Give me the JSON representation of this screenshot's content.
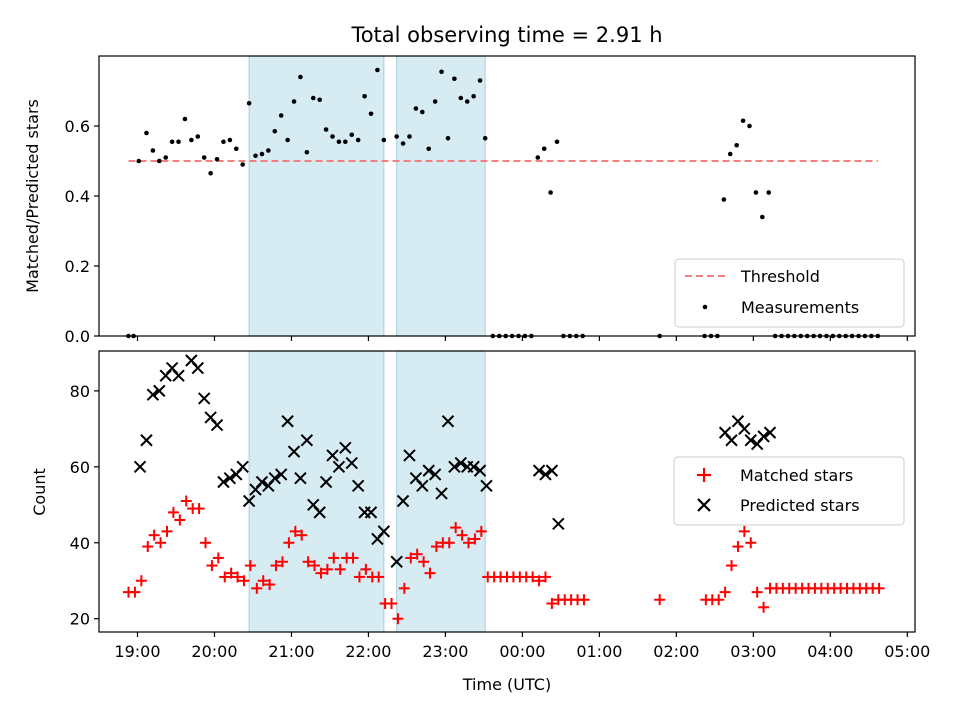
{
  "chart_data": {
    "title": "Total observing time = 2.91 h",
    "xlabel": "Time (UTC)",
    "x_domain": [
      "18:30",
      "05:06"
    ],
    "x_ticks": [
      "19:00",
      "20:00",
      "21:00",
      "22:00",
      "23:00",
      "00:00",
      "01:00",
      "02:00",
      "03:00",
      "04:00",
      "05:00"
    ],
    "shaded_intervals": [
      [
        "20:27",
        "22:12"
      ],
      [
        "22:22",
        "23:31"
      ]
    ],
    "top": {
      "type": "scatter",
      "ylabel": "Matched/Predicted stars",
      "ylim": [
        0,
        0.8
      ],
      "y_ticks": [
        "0.0",
        "0.2",
        "0.4",
        "0.6"
      ],
      "legend": "bottom-right",
      "threshold": {
        "name": "Threshold",
        "y": 0.5,
        "x": [
          "18:53",
          "04:37"
        ],
        "color": "#f47f7f"
      },
      "measurements": {
        "name": "Measurements",
        "color": "#000000",
        "points": [
          [
            "18:53",
            0
          ],
          [
            "18:57",
            0
          ],
          [
            "19:01",
            0.5
          ],
          [
            "19:07",
            0.58
          ],
          [
            "19:12",
            0.53
          ],
          [
            "19:17",
            0.5
          ],
          [
            "19:22",
            0.51
          ],
          [
            "19:27",
            0.555
          ],
          [
            "19:32",
            0.555
          ],
          [
            "19:37",
            0.62
          ],
          [
            "19:42",
            0.56
          ],
          [
            "19:47",
            0.57
          ],
          [
            "19:52",
            0.51
          ],
          [
            "19:57",
            0.465
          ],
          [
            "20:02",
            0.505
          ],
          [
            "20:07",
            0.555
          ],
          [
            "20:12",
            0.56
          ],
          [
            "20:17",
            0.535
          ],
          [
            "20:22",
            0.49
          ],
          [
            "20:27",
            0.665
          ],
          [
            "20:32",
            0.515
          ],
          [
            "20:37",
            0.52
          ],
          [
            "20:42",
            0.53
          ],
          [
            "20:47",
            0.585
          ],
          [
            "20:52",
            0.63
          ],
          [
            "20:57",
            0.56
          ],
          [
            "21:02",
            0.67
          ],
          [
            "21:07",
            0.74
          ],
          [
            "21:12",
            0.525
          ],
          [
            "21:17",
            0.68
          ],
          [
            "21:22",
            0.675
          ],
          [
            "21:27",
            0.59
          ],
          [
            "21:32",
            0.57
          ],
          [
            "21:37",
            0.555
          ],
          [
            "21:42",
            0.555
          ],
          [
            "21:47",
            0.575
          ],
          [
            "21:52",
            0.56
          ],
          [
            "21:57",
            0.685
          ],
          [
            "22:02",
            0.635
          ],
          [
            "22:07",
            0.76
          ],
          [
            "22:12",
            0.56
          ],
          [
            "22:22",
            0.57
          ],
          [
            "22:27",
            0.55
          ],
          [
            "22:32",
            0.57
          ],
          [
            "22:37",
            0.65
          ],
          [
            "22:42",
            0.64
          ],
          [
            "22:47",
            0.535
          ],
          [
            "22:52",
            0.67
          ],
          [
            "22:57",
            0.755
          ],
          [
            "23:02",
            0.565
          ],
          [
            "23:07",
            0.735
          ],
          [
            "23:12",
            0.68
          ],
          [
            "23:17",
            0.67
          ],
          [
            "23:22",
            0.685
          ],
          [
            "23:27",
            0.73
          ],
          [
            "23:31",
            0.565
          ],
          [
            "23:37",
            0
          ],
          [
            "23:42",
            0
          ],
          [
            "23:47",
            0
          ],
          [
            "23:52",
            0
          ],
          [
            "23:57",
            0
          ],
          [
            "00:02",
            0
          ],
          [
            "00:07",
            0
          ],
          [
            "00:12",
            0.51
          ],
          [
            "00:17",
            0.535
          ],
          [
            "00:22",
            0.41
          ],
          [
            "00:27",
            0.555
          ],
          [
            "00:32",
            0
          ],
          [
            "00:37",
            0
          ],
          [
            "00:42",
            0
          ],
          [
            "00:47",
            0
          ],
          [
            "01:47",
            0
          ],
          [
            "02:22",
            0
          ],
          [
            "02:27",
            0
          ],
          [
            "02:32",
            0
          ],
          [
            "02:37",
            0.39
          ],
          [
            "02:42",
            0.52
          ],
          [
            "02:47",
            0.545
          ],
          [
            "02:52",
            0.615
          ],
          [
            "02:57",
            0.6
          ],
          [
            "03:02",
            0.41
          ],
          [
            "03:07",
            0.34
          ],
          [
            "03:12",
            0.41
          ],
          [
            "03:17",
            0
          ],
          [
            "03:22",
            0
          ],
          [
            "03:27",
            0
          ],
          [
            "03:32",
            0
          ],
          [
            "03:37",
            0
          ],
          [
            "03:42",
            0
          ],
          [
            "03:47",
            0
          ],
          [
            "03:52",
            0
          ],
          [
            "03:57",
            0
          ],
          [
            "04:02",
            0
          ],
          [
            "04:07",
            0
          ],
          [
            "04:12",
            0
          ],
          [
            "04:17",
            0
          ],
          [
            "04:22",
            0
          ],
          [
            "04:27",
            0
          ],
          [
            "04:32",
            0
          ],
          [
            "04:37",
            0
          ]
        ]
      }
    },
    "bottom": {
      "type": "scatter",
      "ylabel": "Count",
      "ylim": [
        16.5,
        90.5
      ],
      "y_ticks": [
        "20",
        "40",
        "60",
        "80"
      ],
      "legend": "center-right",
      "series": [
        {
          "name": "Matched stars",
          "marker": "plus",
          "color": "#ff0000",
          "points": [
            [
              "18:53",
              27
            ],
            [
              "18:58",
              27
            ],
            [
              "19:03",
              30
            ],
            [
              "19:08",
              39
            ],
            [
              "19:13",
              42
            ],
            [
              "19:18",
              40
            ],
            [
              "19:23",
              43
            ],
            [
              "19:28",
              48
            ],
            [
              "19:33",
              46
            ],
            [
              "19:38",
              51
            ],
            [
              "19:43",
              49
            ],
            [
              "19:48",
              49
            ],
            [
              "19:53",
              40
            ],
            [
              "19:58",
              34
            ],
            [
              "20:03",
              36
            ],
            [
              "20:08",
              31
            ],
            [
              "20:13",
              32
            ],
            [
              "20:18",
              31
            ],
            [
              "20:23",
              30
            ],
            [
              "20:28",
              34
            ],
            [
              "20:33",
              28
            ],
            [
              "20:38",
              30
            ],
            [
              "20:43",
              29
            ],
            [
              "20:48",
              34
            ],
            [
              "20:53",
              35
            ],
            [
              "20:58",
              40
            ],
            [
              "21:03",
              43
            ],
            [
              "21:08",
              42
            ],
            [
              "21:13",
              35
            ],
            [
              "21:18",
              34
            ],
            [
              "21:23",
              32
            ],
            [
              "21:28",
              33
            ],
            [
              "21:33",
              36
            ],
            [
              "21:38",
              33
            ],
            [
              "21:43",
              36
            ],
            [
              "21:48",
              36
            ],
            [
              "21:53",
              31
            ],
            [
              "21:58",
              33
            ],
            [
              "22:03",
              31
            ],
            [
              "22:08",
              31
            ],
            [
              "22:13",
              24
            ],
            [
              "22:18",
              24
            ],
            [
              "22:23",
              20
            ],
            [
              "22:28",
              28
            ],
            [
              "22:33",
              36
            ],
            [
              "22:38",
              37
            ],
            [
              "22:43",
              35
            ],
            [
              "22:48",
              32
            ],
            [
              "22:53",
              39
            ],
            [
              "22:58",
              40
            ],
            [
              "23:03",
              40
            ],
            [
              "23:08",
              44
            ],
            [
              "23:13",
              42
            ],
            [
              "23:18",
              40
            ],
            [
              "23:23",
              41
            ],
            [
              "23:28",
              43
            ],
            [
              "23:33",
              31
            ],
            [
              "23:38",
              31
            ],
            [
              "23:43",
              31
            ],
            [
              "23:48",
              31
            ],
            [
              "23:53",
              31
            ],
            [
              "23:58",
              31
            ],
            [
              "00:03",
              31
            ],
            [
              "00:08",
              31
            ],
            [
              "00:13",
              30
            ],
            [
              "00:18",
              31
            ],
            [
              "00:23",
              24
            ],
            [
              "00:28",
              25
            ],
            [
              "00:33",
              25
            ],
            [
              "00:38",
              25
            ],
            [
              "00:43",
              25
            ],
            [
              "00:48",
              25
            ],
            [
              "01:47",
              25
            ],
            [
              "02:23",
              25
            ],
            [
              "02:28",
              25
            ],
            [
              "02:33",
              25
            ],
            [
              "02:38",
              27
            ],
            [
              "02:43",
              34
            ],
            [
              "02:48",
              39
            ],
            [
              "02:53",
              43
            ],
            [
              "02:58",
              40
            ],
            [
              "03:03",
              27
            ],
            [
              "03:08",
              23
            ],
            [
              "03:13",
              28
            ],
            [
              "03:18",
              28
            ],
            [
              "03:23",
              28
            ],
            [
              "03:28",
              28
            ],
            [
              "03:33",
              28
            ],
            [
              "03:38",
              28
            ],
            [
              "03:43",
              28
            ],
            [
              "03:48",
              28
            ],
            [
              "03:53",
              28
            ],
            [
              "03:58",
              28
            ],
            [
              "04:03",
              28
            ],
            [
              "04:08",
              28
            ],
            [
              "04:13",
              28
            ],
            [
              "04:18",
              28
            ],
            [
              "04:23",
              28
            ],
            [
              "04:28",
              28
            ],
            [
              "04:33",
              28
            ],
            [
              "04:38",
              28
            ]
          ]
        },
        {
          "name": "Predicted stars",
          "marker": "x",
          "color": "#000000",
          "points": [
            [
              "19:02",
              60
            ],
            [
              "19:07",
              67
            ],
            [
              "19:12",
              79
            ],
            [
              "19:17",
              80
            ],
            [
              "19:22",
              84
            ],
            [
              "19:27",
              86
            ],
            [
              "19:32",
              84
            ],
            [
              "19:42",
              88
            ],
            [
              "19:47",
              86
            ],
            [
              "19:52",
              78
            ],
            [
              "19:57",
              73
            ],
            [
              "20:02",
              71
            ],
            [
              "20:07",
              56
            ],
            [
              "20:12",
              57
            ],
            [
              "20:17",
              58
            ],
            [
              "20:22",
              60
            ],
            [
              "20:27",
              51
            ],
            [
              "20:32",
              54
            ],
            [
              "20:37",
              56
            ],
            [
              "20:42",
              55
            ],
            [
              "20:47",
              57
            ],
            [
              "20:52",
              58
            ],
            [
              "20:57",
              72
            ],
            [
              "21:02",
              64
            ],
            [
              "21:07",
              57
            ],
            [
              "21:12",
              67
            ],
            [
              "21:17",
              50
            ],
            [
              "21:22",
              48
            ],
            [
              "21:27",
              56
            ],
            [
              "21:32",
              63
            ],
            [
              "21:37",
              60
            ],
            [
              "21:42",
              65
            ],
            [
              "21:47",
              61
            ],
            [
              "21:52",
              55
            ],
            [
              "21:57",
              48
            ],
            [
              "22:02",
              48
            ],
            [
              "22:07",
              41
            ],
            [
              "22:12",
              43
            ],
            [
              "22:22",
              35
            ],
            [
              "22:27",
              51
            ],
            [
              "22:32",
              63
            ],
            [
              "22:37",
              57
            ],
            [
              "22:42",
              55
            ],
            [
              "22:47",
              59
            ],
            [
              "22:52",
              58
            ],
            [
              "22:57",
              53
            ],
            [
              "23:02",
              72
            ],
            [
              "23:07",
              60
            ],
            [
              "23:12",
              61
            ],
            [
              "23:17",
              60
            ],
            [
              "23:22",
              60
            ],
            [
              "23:27",
              59
            ],
            [
              "23:32",
              55
            ],
            [
              "00:13",
              59
            ],
            [
              "00:18",
              58
            ],
            [
              "00:23",
              59
            ],
            [
              "00:28",
              45
            ],
            [
              "02:38",
              69
            ],
            [
              "02:43",
              67
            ],
            [
              "02:48",
              72
            ],
            [
              "02:53",
              70
            ],
            [
              "02:58",
              67
            ],
            [
              "03:03",
              66
            ],
            [
              "03:08",
              68
            ],
            [
              "03:13",
              69
            ]
          ]
        }
      ]
    }
  }
}
